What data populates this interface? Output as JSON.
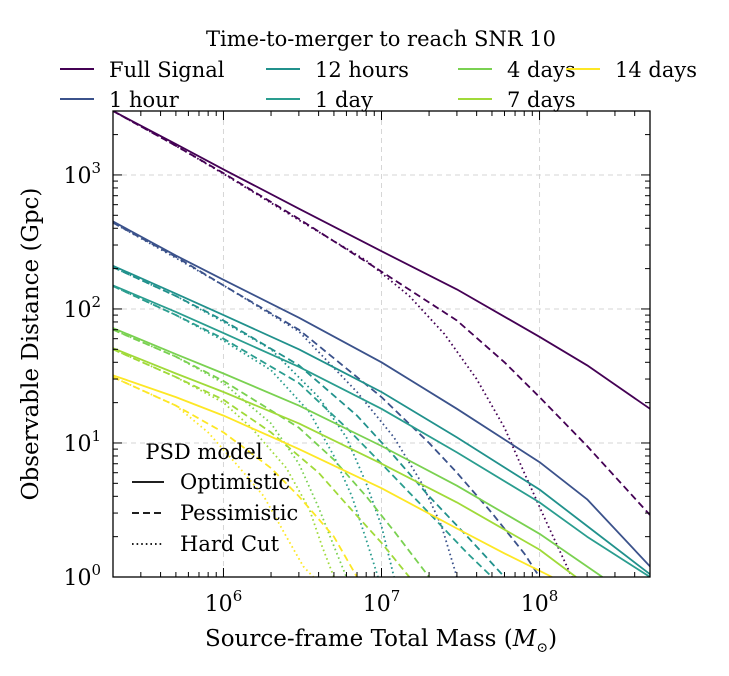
{
  "chart_data": {
    "type": "line",
    "title": "",
    "xlabel": "Source-frame Total Mass (M⊙)",
    "xlabel_text": "Source-frame Total Mass (",
    "xlabel_symbol": "M",
    "xlabel_sub": "⊙",
    "xlabel_close": ")",
    "ylabel": "Observable Distance (Gpc)",
    "x_scale": "log",
    "y_scale": "log",
    "xlim": [
      200000,
      500000000
    ],
    "ylim": [
      1,
      3000
    ],
    "x_ticks": [
      1000000,
      10000000,
      100000000
    ],
    "x_tick_labels": [
      {
        "base": "10",
        "exp": "6"
      },
      {
        "base": "10",
        "exp": "7"
      },
      {
        "base": "10",
        "exp": "8"
      }
    ],
    "y_ticks": [
      1,
      10,
      100,
      1000
    ],
    "y_tick_labels": [
      {
        "base": "10",
        "exp": "0"
      },
      {
        "base": "10",
        "exp": "1"
      },
      {
        "base": "10",
        "exp": "2"
      },
      {
        "base": "10",
        "exp": "3"
      }
    ],
    "grid": true,
    "legend_top": {
      "title": "Time-to-merger to reach SNR 10",
      "placement": "above plot",
      "entries": [
        "Full Signal",
        "1 hour",
        "12 hours",
        "1 day",
        "4 days",
        "7 days",
        "14 days"
      ]
    },
    "legend_psd": {
      "title": "PSD model",
      "placement": "lower-left",
      "entries": [
        {
          "label": "Optimistic",
          "style": "solid"
        },
        {
          "label": "Pessimistic",
          "style": "dashed"
        },
        {
          "label": "Hard Cut",
          "style": "dotted"
        }
      ]
    },
    "series": [
      {
        "name": "Full Signal",
        "color": "#440154",
        "optimistic": [
          [
            200000,
            3000
          ],
          [
            500000,
            1700
          ],
          [
            1000000,
            1100
          ],
          [
            3000000,
            560
          ],
          [
            10000000,
            270
          ],
          [
            30000000,
            140
          ],
          [
            100000000,
            62
          ],
          [
            200000000,
            38
          ],
          [
            500000000,
            18
          ]
        ],
        "pessimistic": [
          [
            200000,
            3000
          ],
          [
            500000,
            1650
          ],
          [
            1000000,
            1030
          ],
          [
            3000000,
            470
          ],
          [
            10000000,
            190
          ],
          [
            30000000,
            82
          ],
          [
            60000000,
            40
          ],
          [
            100000000,
            22
          ],
          [
            200000000,
            9.5
          ],
          [
            500000000,
            2.9
          ]
        ],
        "hardcut": [
          [
            200000,
            3000
          ],
          [
            500000,
            1650
          ],
          [
            1000000,
            1020
          ],
          [
            3000000,
            460
          ],
          [
            8000000,
            230
          ],
          [
            15000000,
            125
          ],
          [
            25000000,
            65
          ],
          [
            40000000,
            30
          ],
          [
            60000000,
            13
          ],
          [
            80000000,
            6
          ],
          [
            110000000,
            2.6
          ],
          [
            160000000,
            1.0
          ]
        ]
      },
      {
        "name": "1 hour",
        "color": "#3b528b",
        "optimistic": [
          [
            200000,
            450
          ],
          [
            500000,
            250
          ],
          [
            1000000,
            165
          ],
          [
            3000000,
            86
          ],
          [
            10000000,
            40
          ],
          [
            30000000,
            18
          ],
          [
            100000000,
            7.2
          ],
          [
            200000000,
            3.8
          ],
          [
            500000000,
            1.2
          ]
        ],
        "pessimistic": [
          [
            200000,
            440
          ],
          [
            500000,
            245
          ],
          [
            1000000,
            150
          ],
          [
            3000000,
            70
          ],
          [
            10000000,
            22
          ],
          [
            20000000,
            10
          ],
          [
            30000000,
            6
          ],
          [
            50000000,
            3
          ],
          [
            80000000,
            1.5
          ],
          [
            100000000,
            1.0
          ]
        ],
        "hardcut": [
          [
            200000,
            440
          ],
          [
            500000,
            240
          ],
          [
            1000000,
            150
          ],
          [
            3000000,
            68
          ],
          [
            7000000,
            24
          ],
          [
            12000000,
            11
          ],
          [
            18000000,
            5
          ],
          [
            24000000,
            2.4
          ],
          [
            30000000,
            1.0
          ]
        ]
      },
      {
        "name": "12 hours",
        "color": "#21918c",
        "optimistic": [
          [
            200000,
            210
          ],
          [
            500000,
            130
          ],
          [
            1000000,
            90
          ],
          [
            3000000,
            50
          ],
          [
            10000000,
            24
          ],
          [
            30000000,
            11
          ],
          [
            100000000,
            4.5
          ],
          [
            200000000,
            2.4
          ],
          [
            500000000,
            1.05
          ]
        ],
        "pessimistic": [
          [
            200000,
            205
          ],
          [
            500000,
            125
          ],
          [
            1000000,
            82
          ],
          [
            3000000,
            38
          ],
          [
            7000000,
            16
          ],
          [
            12000000,
            8
          ],
          [
            20000000,
            4
          ],
          [
            35000000,
            2
          ],
          [
            60000000,
            1.0
          ]
        ],
        "hardcut": [
          [
            200000,
            205
          ],
          [
            500000,
            125
          ],
          [
            1000000,
            80
          ],
          [
            2000000,
            50
          ],
          [
            4000000,
            22
          ],
          [
            6000000,
            11
          ],
          [
            8000000,
            5
          ],
          [
            10000000,
            2.4
          ],
          [
            12000000,
            1.0
          ]
        ]
      },
      {
        "name": "1 day",
        "color": "#2a9d8f",
        "optimistic": [
          [
            200000,
            150
          ],
          [
            500000,
            95
          ],
          [
            1000000,
            66
          ],
          [
            3000000,
            37
          ],
          [
            10000000,
            18
          ],
          [
            30000000,
            8.5
          ],
          [
            100000000,
            3.6
          ],
          [
            200000000,
            2.0
          ],
          [
            500000000,
            1.0
          ]
        ],
        "pessimistic": [
          [
            200000,
            148
          ],
          [
            500000,
            90
          ],
          [
            1000000,
            60
          ],
          [
            3000000,
            28
          ],
          [
            6000000,
            13
          ],
          [
            10000000,
            7
          ],
          [
            20000000,
            3
          ],
          [
            35000000,
            1.5
          ],
          [
            50000000,
            1.0
          ]
        ],
        "hardcut": [
          [
            200000,
            148
          ],
          [
            500000,
            90
          ],
          [
            1000000,
            58
          ],
          [
            2000000,
            35
          ],
          [
            3500000,
            17
          ],
          [
            5000000,
            8
          ],
          [
            6500000,
            4
          ],
          [
            8000000,
            1.9
          ],
          [
            9500000,
            1.0
          ]
        ]
      },
      {
        "name": "4 days",
        "color": "#7ad151",
        "optimistic": [
          [
            200000,
            72
          ],
          [
            500000,
            46
          ],
          [
            1000000,
            33
          ],
          [
            3000000,
            19
          ],
          [
            10000000,
            9.5
          ],
          [
            30000000,
            4.8
          ],
          [
            100000000,
            2.1
          ],
          [
            250000000,
            1.0
          ]
        ],
        "pessimistic": [
          [
            200000,
            70
          ],
          [
            500000,
            44
          ],
          [
            1000000,
            29
          ],
          [
            3000000,
            13
          ],
          [
            5000000,
            7.5
          ],
          [
            8000000,
            4
          ],
          [
            12000000,
            2.2
          ],
          [
            20000000,
            1.0
          ]
        ],
        "hardcut": [
          [
            200000,
            70
          ],
          [
            500000,
            44
          ],
          [
            1000000,
            28
          ],
          [
            2000000,
            14
          ],
          [
            3000000,
            7
          ],
          [
            4000000,
            3.3
          ],
          [
            5000000,
            1.7
          ],
          [
            6000000,
            1.0
          ]
        ]
      },
      {
        "name": "7 days",
        "color": "#a0da39",
        "optimistic": [
          [
            200000,
            51
          ],
          [
            500000,
            33
          ],
          [
            1000000,
            24
          ],
          [
            3000000,
            14
          ],
          [
            10000000,
            7
          ],
          [
            30000000,
            3.6
          ],
          [
            100000000,
            1.6
          ],
          [
            170000000,
            1.0
          ]
        ],
        "pessimistic": [
          [
            200000,
            50
          ],
          [
            500000,
            31
          ],
          [
            1000000,
            21
          ],
          [
            2000000,
            12
          ],
          [
            4000000,
            6
          ],
          [
            6000000,
            3.5
          ],
          [
            10000000,
            1.8
          ],
          [
            15000000,
            1.0
          ]
        ],
        "hardcut": [
          [
            200000,
            50
          ],
          [
            500000,
            31
          ],
          [
            1000000,
            20
          ],
          [
            1500000,
            13
          ],
          [
            2500000,
            6.5
          ],
          [
            3500000,
            3.2
          ],
          [
            4200000,
            1.7
          ],
          [
            5000000,
            1.0
          ]
        ]
      },
      {
        "name": "14 days",
        "color": "#fde725",
        "optimistic": [
          [
            200000,
            32
          ],
          [
            500000,
            22
          ],
          [
            1000000,
            16
          ],
          [
            3000000,
            9
          ],
          [
            10000000,
            4.6
          ],
          [
            30000000,
            2.3
          ],
          [
            60000000,
            1.5
          ],
          [
            120000000,
            1.0
          ]
        ],
        "pessimistic": [
          [
            200000,
            31
          ],
          [
            500000,
            19
          ],
          [
            1000000,
            12
          ],
          [
            2000000,
            6.5
          ],
          [
            3000000,
            4
          ],
          [
            5000000,
            2
          ],
          [
            7000000,
            1.0
          ]
        ],
        "hardcut": [
          [
            200000,
            31
          ],
          [
            500000,
            19
          ],
          [
            800000,
            12
          ],
          [
            1200000,
            7
          ],
          [
            1800000,
            4
          ],
          [
            2500000,
            2
          ],
          [
            3200000,
            1.2
          ],
          [
            3700000,
            1.0
          ]
        ]
      }
    ]
  }
}
